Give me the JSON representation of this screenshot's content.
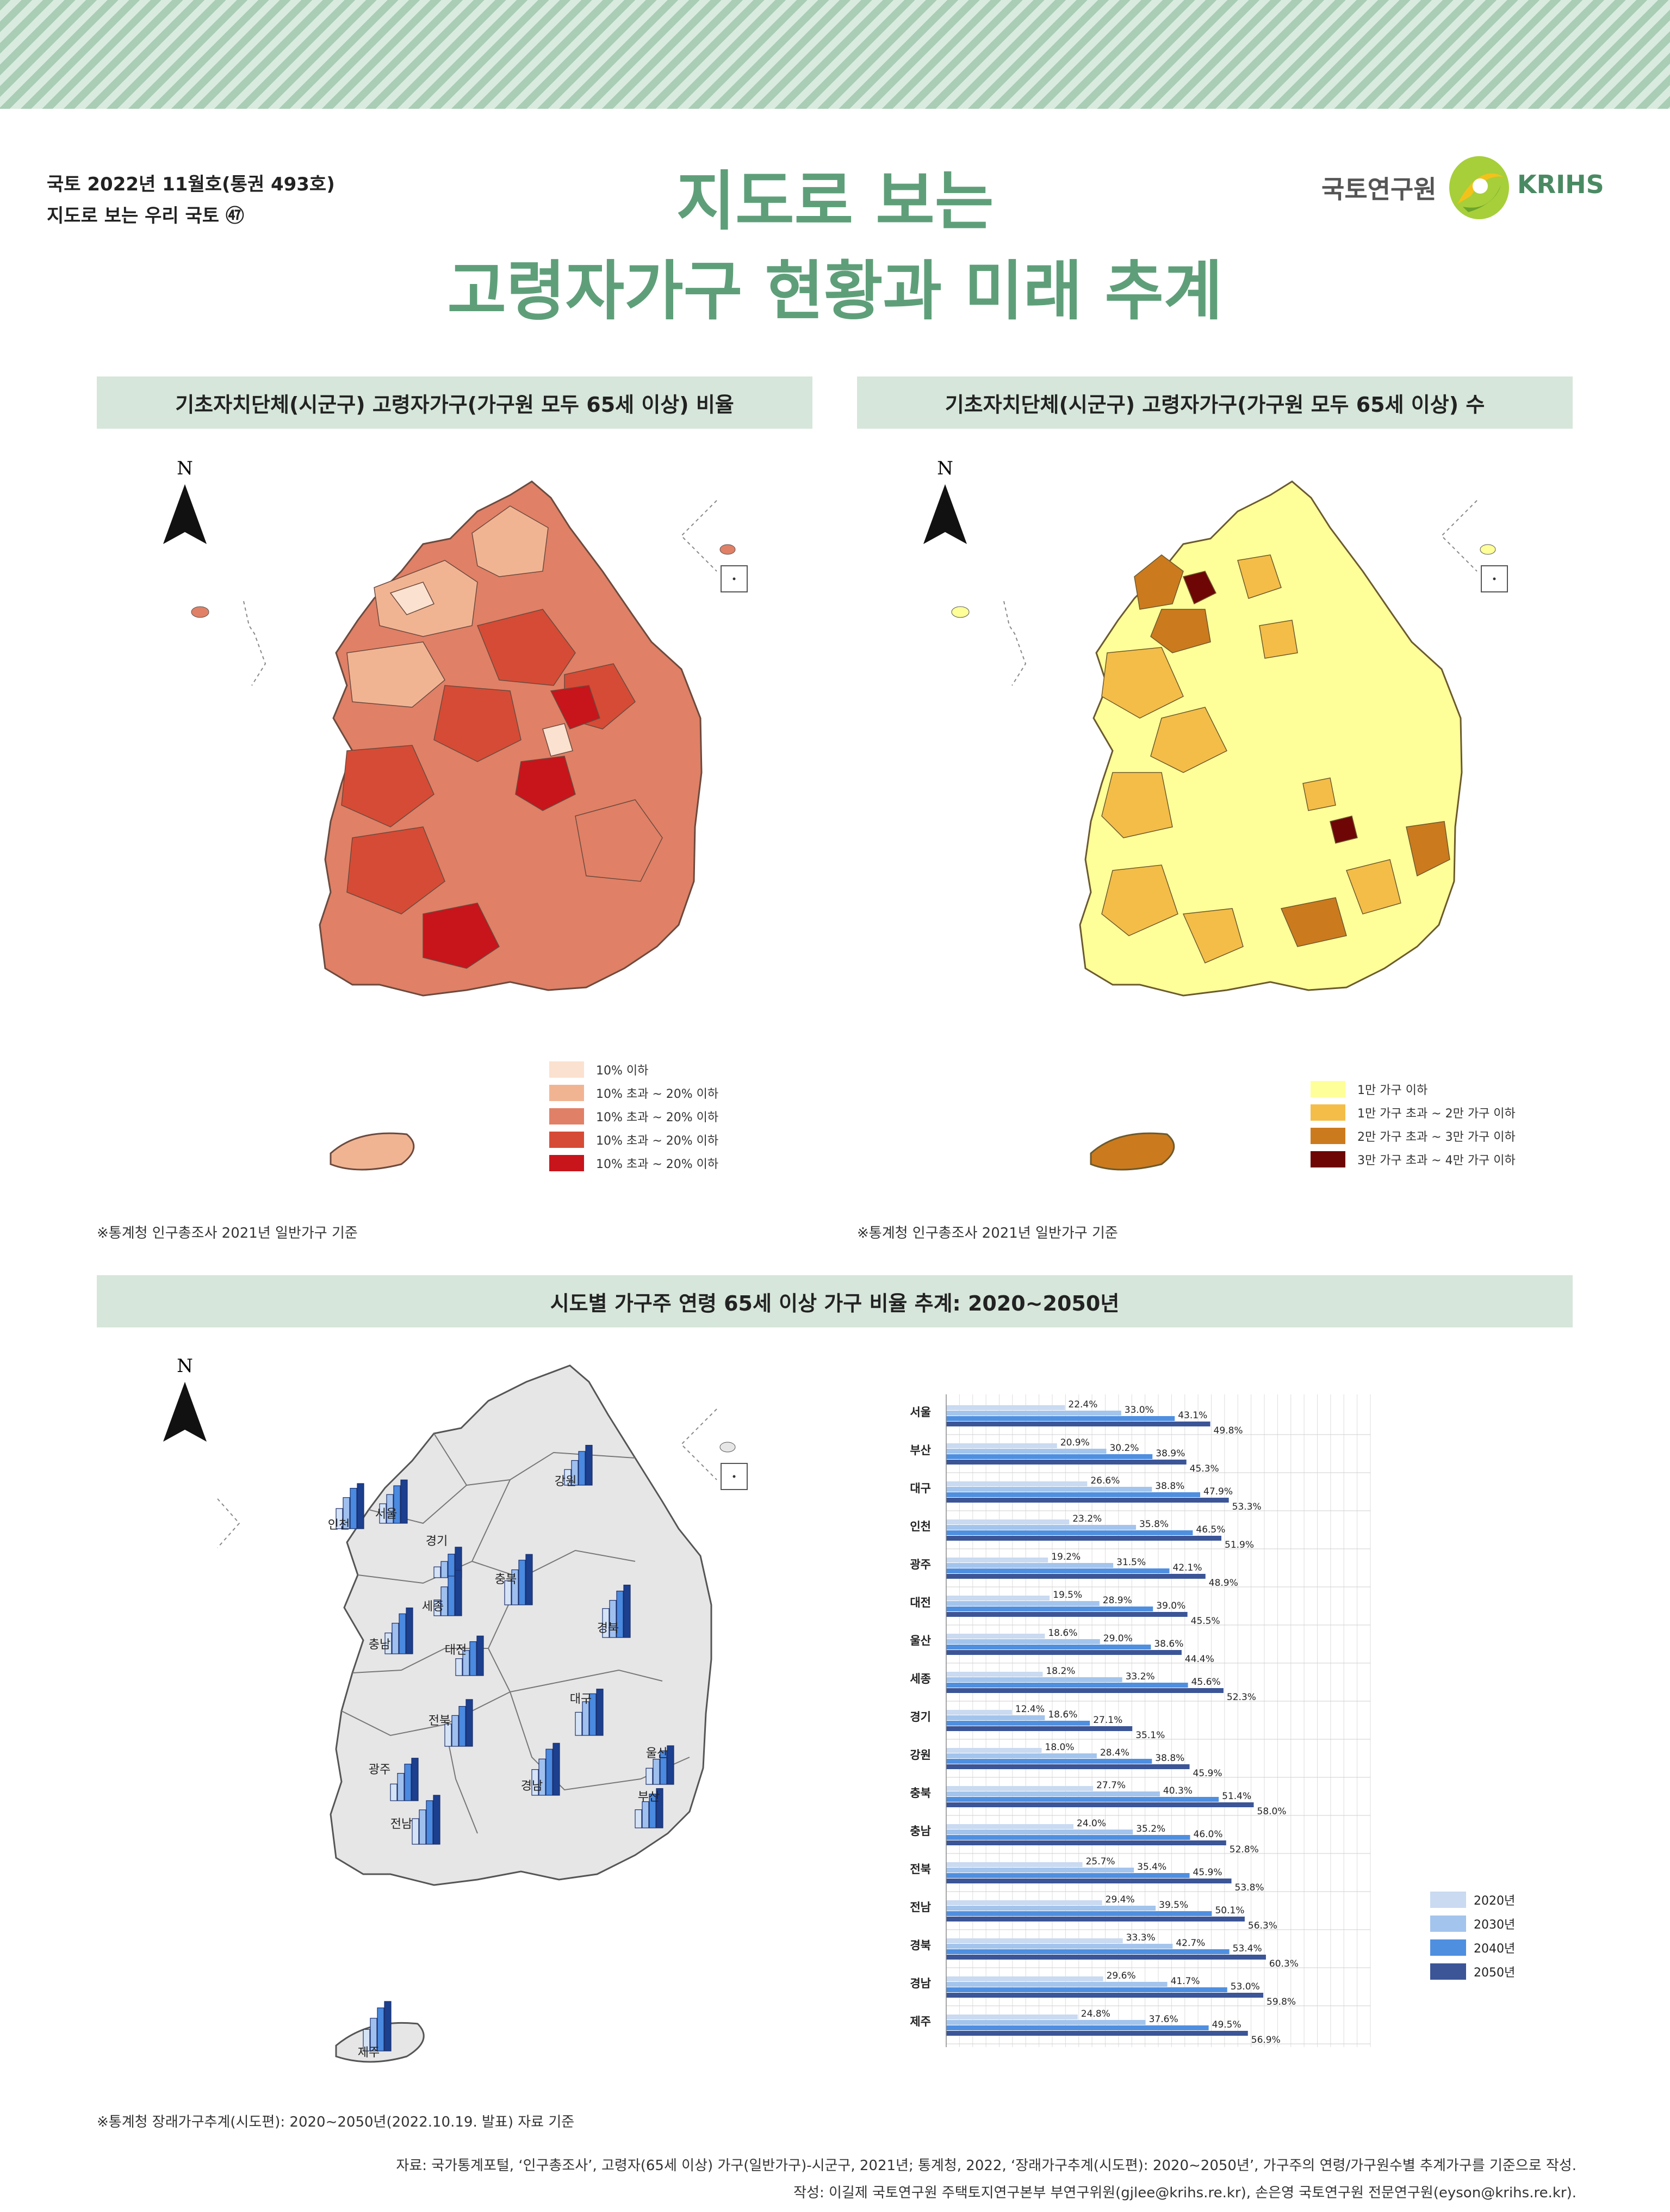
{
  "header": {
    "issue_line1": "국토 2022년 11월호(통권 493호)",
    "issue_line2": "지도로 보는 우리 국토 ㊼",
    "title_line1": "지도로 보는",
    "title_line2": "고령자가구 현황과 미래 추계",
    "logo_kor": "국토연구원",
    "logo_eng": "KRIHS"
  },
  "panel1": {
    "title": "기초자치단체(시군구) 고령자가구(가구원 모두 65세 이상) 비율",
    "north_label": "N",
    "legend": [
      {
        "label": "10% 이하",
        "color": "#fbe1cf"
      },
      {
        "label": "10% 초과 ~ 20% 이하",
        "color": "#f1b493"
      },
      {
        "label": "10% 초과 ~ 20% 이하",
        "color": "#e08066"
      },
      {
        "label": "10% 초과 ~ 20% 이하",
        "color": "#d64b35"
      },
      {
        "label": "10% 초과 ~ 20% 이하",
        "color": "#c8141b"
      }
    ],
    "note": "※통계청 인구총조사 2021년 일반가구 기준"
  },
  "panel2": {
    "title": "기초자치단체(시군구) 고령자가구(가구원 모두 65세 이상) 수",
    "north_label": "N",
    "legend": [
      {
        "label": "1만 가구 이하",
        "color": "#ffff99"
      },
      {
        "label": "1만 가구 초과  ~  2만 가구 이하",
        "color": "#f4bd48"
      },
      {
        "label": "2만 가구 초과 ~ 3만 가구 이하",
        "color": "#cc7a1e"
      },
      {
        "label": "3만 가구 초과  ~  4만 가구 이하",
        "color": "#6e0606"
      }
    ],
    "note": "※통계청 인구총조사 2021년 일반가구 기준"
  },
  "panel3": {
    "title": "시도별 가구주 연령 65세 이상 가구 비율 추계: 2020∼2050년",
    "north_label": "N",
    "region_labels": [
      "서울",
      "인천",
      "강원",
      "경기",
      "충북",
      "세종",
      "충남",
      "대전",
      "경북",
      "대구",
      "전북",
      "울산",
      "광주",
      "경남",
      "부산",
      "전남",
      "제주"
    ],
    "note": "※통계청 장래가구추계(시도편): 2020∼2050년(2022.10.19. 발표) 자료 기준"
  },
  "chart_data": {
    "type": "bar",
    "orientation": "horizontal",
    "title": "시도별 가구주 연령 65세 이상 가구 비율 추계: 2020∼2050년",
    "categories": [
      "서울",
      "부산",
      "대구",
      "인천",
      "광주",
      "대전",
      "울산",
      "세종",
      "경기",
      "강원",
      "충북",
      "충남",
      "전북",
      "전남",
      "경북",
      "경남",
      "제주"
    ],
    "series": [
      {
        "name": "2020년",
        "color": "#c9daf1",
        "values": [
          22.4,
          20.9,
          26.6,
          23.2,
          19.2,
          19.5,
          18.6,
          18.2,
          12.4,
          18.0,
          27.7,
          24.0,
          25.7,
          29.4,
          33.3,
          29.6,
          24.8
        ]
      },
      {
        "name": "2030년",
        "color": "#a3c4ec",
        "values": [
          33.0,
          30.2,
          38.8,
          35.8,
          31.5,
          28.9,
          29.0,
          33.2,
          18.6,
          28.4,
          40.3,
          35.2,
          35.4,
          39.5,
          42.7,
          41.7,
          37.6
        ]
      },
      {
        "name": "2040년",
        "color": "#4f8fe0",
        "values": [
          43.1,
          38.9,
          47.9,
          46.5,
          42.1,
          39.0,
          38.6,
          45.6,
          27.1,
          38.8,
          51.4,
          46.0,
          45.9,
          50.1,
          53.4,
          53.0,
          49.5
        ]
      },
      {
        "name": "2050년",
        "color": "#3b5597",
        "values": [
          49.8,
          45.3,
          53.3,
          51.9,
          48.9,
          45.5,
          44.4,
          52.3,
          35.1,
          45.9,
          58.0,
          52.8,
          53.8,
          56.3,
          60.3,
          59.8,
          56.9
        ]
      }
    ],
    "value_suffix": "%",
    "xlim": [
      0,
      80
    ],
    "grid": true,
    "legend_position": "right"
  },
  "footer": {
    "source": "자료: 국가통계포털, ‘인구총조사’, 고령자(65세 이상) 가구(일반가구)-시군구, 2021년; 통계청, 2022, ‘장래가구추계(시도편): 2020∼2050년’, 가구주의 연령/가구원수별 추계가구를 기준으로 작성.",
    "author": "작성: 이길제 국토연구원 주택토지연구본부 부연구위원(gjlee@krihs.re.kr), 손은영 국토연구원 전문연구원(eyson@krihs.re.kr)."
  }
}
